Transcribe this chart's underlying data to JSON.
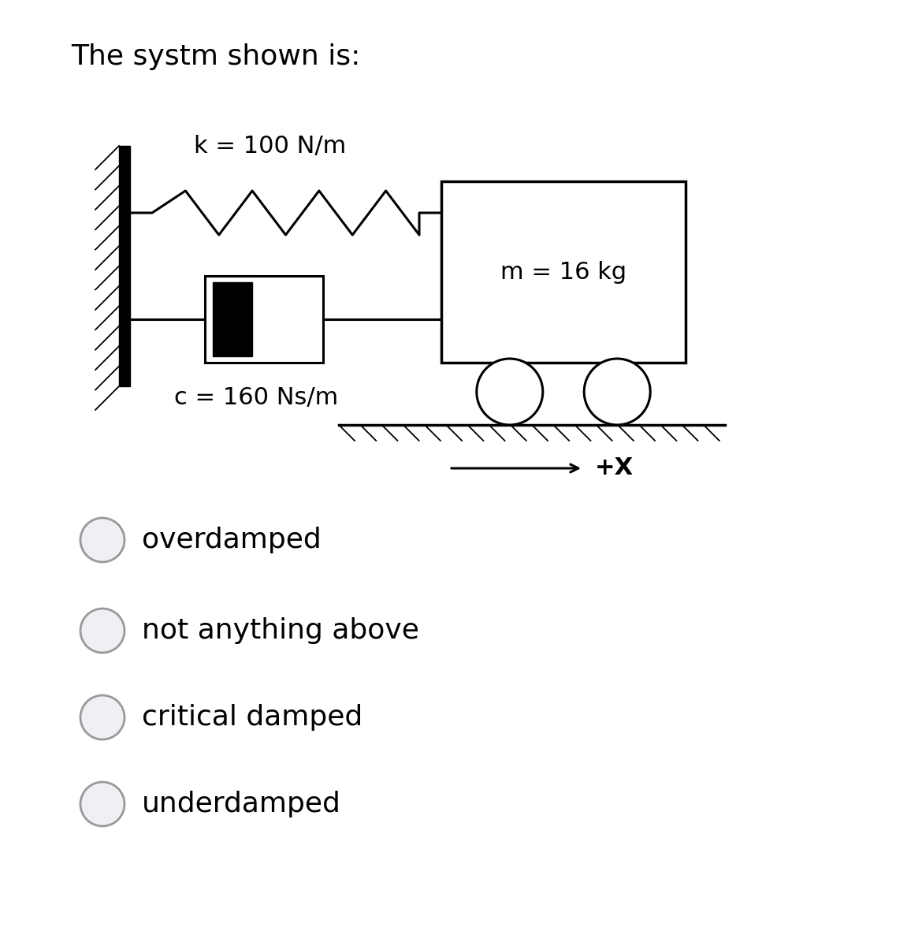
{
  "title": "The systm shown is:",
  "k_label": "k = 100 N/m",
  "c_label": "c = 160 Ns/m",
  "m_label": "m = 16 kg",
  "x_label": "+X",
  "options": [
    "overdamped",
    "not anything above",
    "critical damped",
    "underdamped"
  ],
  "bg_color": "#ffffff",
  "text_color": "#000000",
  "title_fontsize": 26,
  "label_fontsize": 22,
  "option_fontsize": 26,
  "radio_color": "#cccccc",
  "radio_edge_color": "#999999",
  "line_color": "#000000"
}
